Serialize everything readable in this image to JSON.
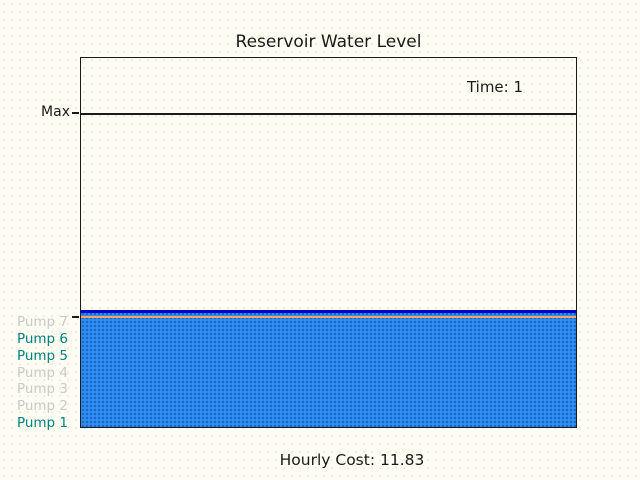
{
  "figure": {
    "title": "Reservoir Water Level",
    "time_annotation": "Time: 1",
    "cost_annotation": "Hourly Cost: 11.83",
    "y_axis": {
      "max_tick_label": "Max"
    },
    "pumps": [
      {
        "label": "Pump 7",
        "state": "off"
      },
      {
        "label": "Pump 6",
        "state": "on"
      },
      {
        "label": "Pump 5",
        "state": "on"
      },
      {
        "label": "Pump 4",
        "state": "off"
      },
      {
        "label": "Pump 3",
        "state": "off"
      },
      {
        "label": "Pump 2",
        "state": "off"
      },
      {
        "label": "Pump 1",
        "state": "on"
      }
    ],
    "colors": {
      "water_fill": "#2E8FEF",
      "water_surface_line": "#0000CD",
      "min_level_line": "#F4A460",
      "max_level_line": "#1A1A1A",
      "pump_on": "#008080",
      "pump_off": "#C9C9C9"
    }
  },
  "chart_data": {
    "type": "area",
    "title": "Reservoir Water Level",
    "time": 1,
    "hourly_cost": 11.83,
    "annotations": [
      {
        "text": "Time: 1",
        "position": "inside-upper-right"
      },
      {
        "text": "Hourly Cost: 11.83",
        "position": "below-axes-center"
      }
    ],
    "y_axis": {
      "tick_labels": [
        "Max"
      ],
      "numeric_ticks_visible": false,
      "range_in_max_units": [
        0,
        1.18
      ]
    },
    "x_axis": {
      "tick_labels": [],
      "visible_ticks": false
    },
    "grid": false,
    "legend": "none",
    "series": [
      {
        "name": "water fill",
        "style": "filled-area",
        "value_fraction_of_max": 0.37,
        "color": "#2E8FEF"
      },
      {
        "name": "water surface line",
        "style": "line",
        "value_fraction_of_max": 0.37,
        "color": "#0000CD"
      },
      {
        "name": "min level line",
        "style": "line",
        "value_fraction_of_max": 0.35,
        "color": "#F4A460"
      },
      {
        "name": "max level line",
        "style": "line",
        "value_fraction_of_max": 1.0,
        "color": "#1A1A1A"
      }
    ],
    "pump_states": {
      "Pump 7": "off",
      "Pump 6": "on",
      "Pump 5": "on",
      "Pump 4": "off",
      "Pump 3": "off",
      "Pump 2": "off",
      "Pump 1": "on"
    }
  }
}
